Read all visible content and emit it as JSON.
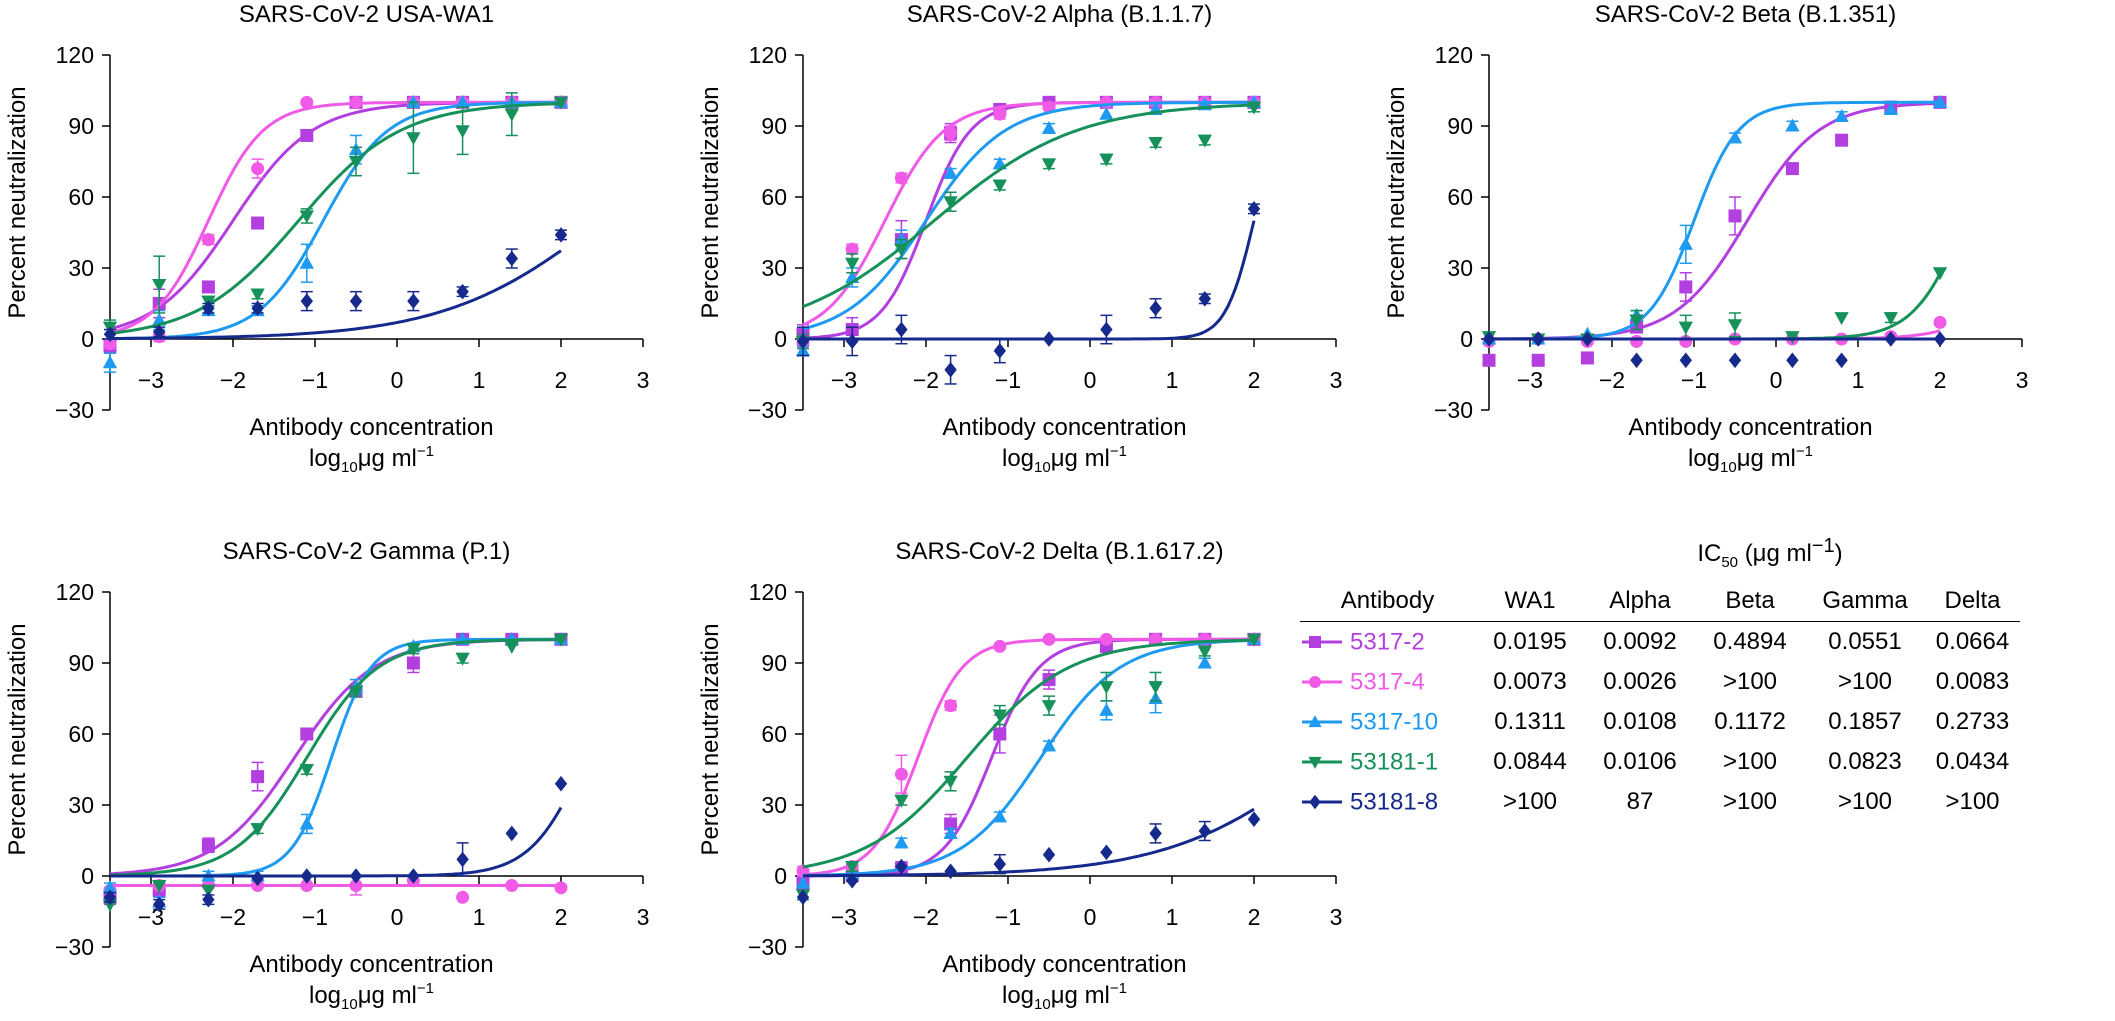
{
  "colors": {
    "5317-2": "#B43FE0",
    "5317-4": "#F05AE6",
    "5317-10": "#1E9BF0",
    "53181-1": "#16915A",
    "53181-8": "#152A8C"
  },
  "markers": {
    "5317-2": "square",
    "5317-4": "circle",
    "5317-10": "triangle-up",
    "53181-1": "triangle-down",
    "53181-8": "diamond"
  },
  "chart_data": [
    {
      "type": "line",
      "title": "SARS-CoV-2 USA-WA1",
      "xlabel": "Antibody concentration",
      "xlabel2": "log10μg ml−1",
      "ylabel": "Percent neutralization",
      "xlim": [
        -3.5,
        3
      ],
      "ylim": [
        -30,
        120
      ],
      "xticks": [
        -3,
        -2,
        -1,
        0,
        1,
        2,
        3
      ],
      "yticks": [
        -30,
        0,
        30,
        60,
        90,
        120
      ],
      "xtick_labels": [
        "−3",
        "−2",
        "−1",
        "0",
        "1",
        "2",
        "3"
      ],
      "ytick_labels": [
        "−30",
        "0",
        "30",
        "60",
        "90",
        "120"
      ],
      "x": [
        -3.5,
        -2.9,
        -2.3,
        -1.7,
        -1.1,
        -0.5,
        0.2,
        0.8,
        1.4,
        2.0
      ],
      "series": [
        {
          "name": "5317-2",
          "values": [
            -3,
            15,
            22,
            49,
            86,
            100,
            100,
            100,
            100,
            100
          ],
          "errors": [
            2,
            6,
            2,
            2,
            2,
            1,
            1,
            1,
            1,
            1
          ],
          "fit": [
            -2.0,
            0.9
          ]
        },
        {
          "name": "5317-4",
          "values": [
            -2,
            1,
            42,
            72,
            100,
            100,
            100,
            100,
            100,
            100
          ],
          "errors": [
            2,
            2,
            2,
            4,
            1,
            1,
            1,
            1,
            1,
            1
          ],
          "fit": [
            -2.3,
            1.3
          ]
        },
        {
          "name": "5317-10",
          "values": [
            -10,
            8,
            12,
            12,
            32,
            80,
            100,
            100,
            100,
            100
          ],
          "errors": [
            4,
            4,
            2,
            2,
            8,
            6,
            1,
            1,
            1,
            1
          ],
          "fit": [
            -0.9,
            1.1
          ]
        },
        {
          "name": "53181-1",
          "values": [
            5,
            23,
            16,
            19,
            52,
            75,
            85,
            88,
            95,
            100
          ],
          "errors": [
            3,
            12,
            2,
            2,
            3,
            6,
            15,
            10,
            9,
            1
          ],
          "fit": [
            -1.2,
            0.7
          ]
        },
        {
          "name": "53181-8",
          "values": [
            2,
            3,
            13,
            13,
            16,
            16,
            16,
            20,
            34,
            44
          ],
          "errors": [
            2,
            2,
            2,
            2,
            4,
            4,
            4,
            2,
            4,
            2
          ],
          "fit": [
            2.5,
            0.45
          ]
        }
      ]
    },
    {
      "type": "line",
      "title": "SARS-CoV-2 Alpha (B.1.1.7)",
      "xlabel": "Antibody concentration",
      "xlabel2": "log10μg ml−1",
      "ylabel": "Percent neutralization",
      "xlim": [
        -3.5,
        3
      ],
      "ylim": [
        -30,
        120
      ],
      "xticks": [
        -3,
        -2,
        -1,
        0,
        1,
        2,
        3
      ],
      "yticks": [
        -30,
        0,
        30,
        60,
        90,
        120
      ],
      "xtick_labels": [
        "−3",
        "−2",
        "−1",
        "0",
        "1",
        "2",
        "3"
      ],
      "ytick_labels": [
        "−30",
        "0",
        "30",
        "60",
        "90",
        "120"
      ],
      "x": [
        -3.5,
        -2.9,
        -2.3,
        -1.7,
        -1.1,
        -0.5,
        0.2,
        0.8,
        1.4,
        2.0
      ],
      "series": [
        {
          "name": "5317-2",
          "values": [
            2,
            4,
            42,
            87,
            97,
            100,
            100,
            100,
            100,
            100
          ],
          "errors": [
            4,
            5,
            8,
            4,
            2,
            1,
            1,
            1,
            1,
            1
          ],
          "fit": [
            -2.0,
            1.6
          ]
        },
        {
          "name": "5317-4",
          "values": [
            -2,
            38,
            68,
            87,
            95,
            98,
            100,
            100,
            100,
            100
          ],
          "errors": [
            2,
            2,
            2,
            3,
            2,
            1,
            1,
            1,
            1,
            1
          ],
          "fit": [
            -2.5,
            1.2
          ]
        },
        {
          "name": "5317-10",
          "values": [
            -5,
            26,
            42,
            70,
            74,
            89,
            95,
            97,
            99,
            100
          ],
          "errors": [
            2,
            4,
            4,
            2,
            2,
            2,
            1,
            1,
            1,
            1
          ],
          "fit": [
            -2.0,
            0.9
          ]
        },
        {
          "name": "53181-1",
          "values": [
            -1,
            32,
            38,
            58,
            65,
            74,
            76,
            83,
            84,
            98
          ],
          "errors": [
            3,
            4,
            4,
            4,
            2,
            2,
            2,
            2,
            2,
            2
          ],
          "fit": [
            -1.9,
            0.5
          ]
        },
        {
          "name": "53181-8",
          "values": [
            -1,
            -1,
            4,
            -13,
            -5,
            0,
            4,
            13,
            17,
            55
          ],
          "errors": [
            6,
            6,
            6,
            6,
            5,
            1,
            6,
            4,
            2,
            2
          ],
          "fit": [
            2.0,
            2.5
          ]
        }
      ]
    },
    {
      "type": "line",
      "title": "SARS-CoV-2 Beta (B.1.351)",
      "xlabel": "Antibody concentration",
      "xlabel2": "log10μg ml−1",
      "ylabel": "Percent neutralization",
      "xlim": [
        -3.5,
        3
      ],
      "ylim": [
        -30,
        120
      ],
      "xticks": [
        -3,
        -2,
        -1,
        0,
        1,
        2,
        3
      ],
      "yticks": [
        -30,
        0,
        30,
        60,
        90,
        120
      ],
      "xtick_labels": [
        "−3",
        "−2",
        "−1",
        "0",
        "1",
        "2",
        "3"
      ],
      "ytick_labels": [
        "−30",
        "0",
        "30",
        "60",
        "90",
        "120"
      ],
      "x": [
        -3.5,
        -2.9,
        -2.3,
        -1.7,
        -1.1,
        -0.5,
        0.2,
        0.8,
        1.4,
        2.0
      ],
      "series": [
        {
          "name": "5317-2",
          "values": [
            -9,
            -9,
            -8,
            5,
            22,
            52,
            72,
            84,
            98,
            100
          ],
          "errors": [
            1,
            1,
            1,
            2,
            6,
            8,
            2,
            2,
            1,
            1
          ],
          "fit": [
            -0.35,
            1.0
          ]
        },
        {
          "name": "5317-4",
          "values": [
            -1,
            0,
            -1,
            -1,
            -1,
            0,
            0,
            0,
            1,
            7
          ],
          "errors": [
            1,
            1,
            1,
            1,
            1,
            1,
            1,
            1,
            1,
            1
          ],
          "fit": [
            3.2,
            1.2
          ]
        },
        {
          "name": "5317-10",
          "values": [
            0,
            0,
            2,
            10,
            40,
            85,
            90,
            94,
            97,
            100
          ],
          "errors": [
            1,
            1,
            1,
            2,
            8,
            2,
            2,
            2,
            1,
            1
          ],
          "fit": [
            -1.0,
            1.6
          ]
        },
        {
          "name": "53181-1",
          "values": [
            1,
            0,
            0,
            8,
            5,
            6,
            1,
            9,
            9,
            28
          ],
          "errors": [
            1,
            1,
            1,
            4,
            5,
            5,
            1,
            1,
            2,
            1
          ],
          "fit": [
            2.3,
            1.4
          ]
        },
        {
          "name": "53181-8",
          "values": [
            0,
            0,
            0,
            -9,
            -9,
            -9,
            -9,
            -9,
            0,
            0
          ],
          "errors": [
            0,
            0,
            0,
            1,
            1,
            1,
            1,
            1,
            0,
            0
          ],
          "fit": [
            9.0,
            1.0
          ]
        }
      ]
    },
    {
      "type": "line",
      "title": "SARS-CoV-2 Gamma (P.1)",
      "xlabel": "Antibody concentration",
      "xlabel2": "log10μg ml−1",
      "ylabel": "Percent neutralization",
      "xlim": [
        -3.5,
        3
      ],
      "ylim": [
        -30,
        120
      ],
      "xticks": [
        -3,
        -2,
        -1,
        0,
        1,
        2,
        3
      ],
      "yticks": [
        -30,
        0,
        30,
        60,
        90,
        120
      ],
      "xtick_labels": [
        "−3",
        "−2",
        "−1",
        "0",
        "1",
        "2",
        "3"
      ],
      "ytick_labels": [
        "−30",
        "0",
        "30",
        "60",
        "90",
        "120"
      ],
      "x": [
        -3.5,
        -2.9,
        -2.3,
        -1.7,
        -1.1,
        -0.5,
        0.2,
        0.8,
        1.4,
        2.0
      ],
      "series": [
        {
          "name": "5317-2",
          "values": [
            -9,
            -6,
            13,
            42,
            60,
            78,
            90,
            100,
            100,
            100
          ],
          "errors": [
            3,
            3,
            3,
            6,
            2,
            2,
            4,
            1,
            1,
            1
          ],
          "fit": [
            -1.25,
            0.9
          ]
        },
        {
          "name": "5317-4",
          "values": [
            -6,
            -4,
            -4,
            -4,
            -4,
            -4,
            -2,
            -9,
            -4,
            -5
          ],
          "errors": [
            1,
            1,
            1,
            1,
            1,
            4,
            1,
            1,
            1,
            1
          ],
          "fit": [
            -9.0,
            0.5
          ],
          "flat": -4
        },
        {
          "name": "5317-10",
          "values": [
            -5,
            -11,
            0,
            0,
            22,
            80,
            97,
            100,
            100,
            100
          ],
          "errors": [
            2,
            2,
            2,
            2,
            4,
            3,
            1,
            1,
            1,
            1
          ],
          "fit": [
            -0.8,
            1.8
          ]
        },
        {
          "name": "53181-1",
          "values": [
            -12,
            -4,
            -6,
            20,
            45,
            78,
            96,
            92,
            97,
            100
          ],
          "errors": [
            1,
            1,
            1,
            2,
            2,
            2,
            2,
            2,
            1,
            1
          ],
          "fit": [
            -1.1,
            1.0
          ]
        },
        {
          "name": "53181-8",
          "values": [
            -9,
            -12,
            -10,
            -1,
            0,
            0,
            0,
            7,
            18,
            39
          ],
          "errors": [
            2,
            2,
            2,
            1,
            1,
            1,
            1,
            7,
            1,
            1
          ],
          "fit": [
            2.3,
            1.3
          ]
        }
      ]
    },
    {
      "type": "line",
      "title": "SARS-CoV-2 Delta (B.1.617.2)",
      "xlabel": "Antibody concentration",
      "xlabel2": "log10μg ml−1",
      "ylabel": "Percent neutralization",
      "xlim": [
        -3.5,
        3
      ],
      "ylim": [
        -30,
        120
      ],
      "xticks": [
        -3,
        -2,
        -1,
        0,
        1,
        2,
        3
      ],
      "yticks": [
        -30,
        0,
        30,
        60,
        90,
        120
      ],
      "xtick_labels": [
        "−3",
        "−2",
        "−1",
        "0",
        "1",
        "2",
        "3"
      ],
      "ytick_labels": [
        "−30",
        "0",
        "30",
        "60",
        "90",
        "120"
      ],
      "x": [
        -3.5,
        -2.9,
        -2.3,
        -1.7,
        -1.1,
        -0.5,
        0.2,
        0.8,
        1.4,
        2.0
      ],
      "series": [
        {
          "name": "5317-2",
          "values": [
            -3,
            0,
            3,
            22,
            60,
            83,
            97,
            100,
            100,
            100
          ],
          "errors": [
            2,
            2,
            3,
            4,
            8,
            4,
            2,
            1,
            1,
            1
          ],
          "fit": [
            -1.2,
            1.5
          ]
        },
        {
          "name": "5317-4",
          "values": [
            2,
            4,
            43,
            72,
            97,
            100,
            100,
            100,
            100,
            100
          ],
          "errors": [
            2,
            2,
            8,
            2,
            1,
            1,
            1,
            1,
            1,
            1
          ],
          "fit": [
            -2.1,
            1.6
          ]
        },
        {
          "name": "5317-10",
          "values": [
            -3,
            1,
            14,
            18,
            25,
            55,
            70,
            75,
            90,
            100
          ],
          "errors": [
            1,
            1,
            2,
            2,
            2,
            2,
            4,
            6,
            2,
            1
          ],
          "fit": [
            -0.6,
            0.9
          ]
        },
        {
          "name": "53181-1",
          "values": [
            -8,
            4,
            32,
            40,
            68,
            72,
            80,
            80,
            95,
            100
          ],
          "errors": [
            2,
            2,
            2,
            4,
            4,
            4,
            6,
            6,
            2,
            1
          ],
          "fit": [
            -1.5,
            0.7
          ]
        },
        {
          "name": "53181-8",
          "values": [
            -9,
            -2,
            4,
            2,
            5,
            9,
            10,
            18,
            19,
            24
          ],
          "errors": [
            1,
            1,
            1,
            1,
            4,
            1,
            1,
            4,
            4,
            1
          ],
          "fit": [
            2.9,
            0.45
          ]
        }
      ]
    }
  ],
  "ic50_table": {
    "title_prefix": "IC",
    "title_sub": "50",
    "title_suffix": " (μg ml",
    "title_sup": "−1",
    "title_end": ")",
    "headers": [
      "Antibody",
      "WA1",
      "Alpha",
      "Beta",
      "Gamma",
      "Delta"
    ],
    "rows": [
      {
        "antibody": "5317-2",
        "values": [
          "0.0195",
          "0.0092",
          "0.4894",
          "0.0551",
          "0.0664"
        ]
      },
      {
        "antibody": "5317-4",
        "values": [
          "0.0073",
          "0.0026",
          ">100",
          ">100",
          "0.0083"
        ]
      },
      {
        "antibody": "5317-10",
        "values": [
          "0.1311",
          "0.0108",
          "0.1172",
          "0.1857",
          "0.2733"
        ]
      },
      {
        "antibody": "53181-1",
        "values": [
          "0.0844",
          "0.0106",
          ">100",
          "0.0823",
          "0.0434"
        ]
      },
      {
        "antibody": "53181-8",
        "values": [
          ">100",
          "87",
          ">100",
          ">100",
          ">100"
        ]
      }
    ]
  }
}
